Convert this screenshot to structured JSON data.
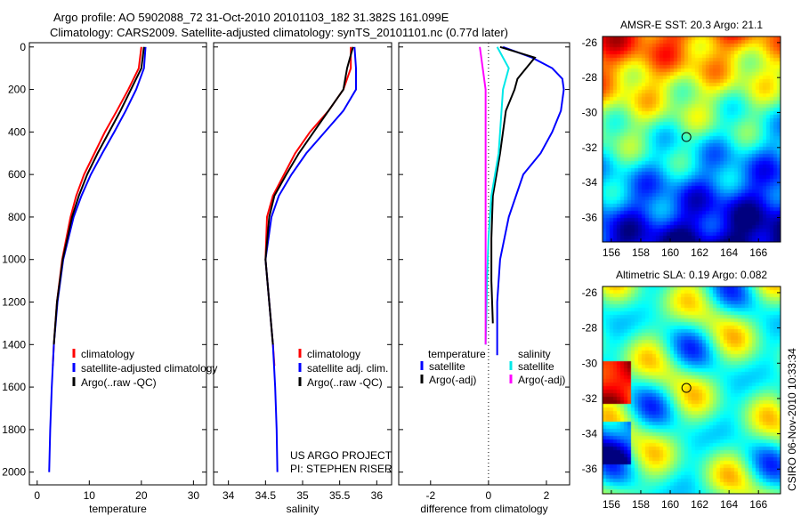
{
  "title_line1": "Argo profile: AO 5902088_72 31-Oct-2010 20101103_182 31.382S 161.099E",
  "title_line2": "Climatology: CARS2009. Satellite-adjusted climatology: synTS_20101101.nc (0.77d later)",
  "footer_credit": "CSIRO 06-Nov-2010 10:33:34",
  "project_line1": "US ARGO PROJECT",
  "project_line2": "PI: STEPHEN RISER",
  "colors": {
    "red": "#ff0000",
    "blue": "#0000ff",
    "black": "#000000",
    "cyan": "#00e8e8",
    "magenta": "#ff00ff"
  },
  "chart_data": [
    {
      "type": "line",
      "id": "temp",
      "xlabel": "temperature",
      "ylabel": "depth",
      "xlim": [
        -1.5,
        32.5
      ],
      "ylim": [
        2060,
        -20
      ],
      "xticks": [
        0,
        10,
        20,
        30
      ],
      "yticks": [
        0,
        200,
        400,
        600,
        800,
        1000,
        1200,
        1400,
        1600,
        1800,
        2000
      ],
      "legend": [
        "climatology",
        "satellite-adjusted climatology",
        "Argo(..raw -QC)"
      ],
      "series": [
        {
          "name": "climatology",
          "color": "red",
          "depth": [
            0,
            100,
            200,
            300,
            400,
            500,
            600,
            700,
            800,
            1000,
            1200,
            1400,
            1500
          ],
          "values": [
            20,
            19.5,
            17.5,
            15.3,
            13,
            11,
            9,
            7.5,
            6.4,
            4.8,
            3.8,
            3.2,
            3.0
          ]
        },
        {
          "name": "satellite-adjusted climatology",
          "color": "blue",
          "depth": [
            0,
            100,
            200,
            300,
            400,
            500,
            600,
            700,
            800,
            1000,
            1200,
            1400,
            1600,
            1800,
            2000
          ],
          "values": [
            20.8,
            20.5,
            19,
            17,
            14.8,
            12.5,
            10.3,
            8.5,
            7,
            5,
            3.9,
            3.2,
            2.8,
            2.5,
            2.3
          ]
        },
        {
          "name": "Argo(..raw -QC)",
          "color": "black",
          "depth": [
            0,
            100,
            200,
            300,
            400,
            500,
            600,
            700,
            800,
            1000,
            1200,
            1400
          ],
          "values": [
            20.5,
            20,
            18,
            16,
            13.8,
            11.6,
            9.6,
            8,
            6.7,
            4.9,
            3.8,
            3.2
          ]
        }
      ]
    },
    {
      "type": "line",
      "id": "sal",
      "xlabel": "salinity",
      "xlim": [
        33.8,
        36.2
      ],
      "ylim": [
        2060,
        -20
      ],
      "xticks": [
        34,
        34.5,
        35,
        35.5,
        36
      ],
      "yticks": [
        0,
        200,
        400,
        600,
        800,
        1000,
        1200,
        1400,
        1600,
        1800,
        2000
      ],
      "legend": [
        "climatology",
        "satellite adj. clim.",
        "Argo(..raw -QC)"
      ],
      "series": [
        {
          "name": "climatology",
          "color": "red",
          "depth": [
            0,
            100,
            200,
            300,
            400,
            500,
            600,
            700,
            800,
            1000,
            1200,
            1400,
            1500
          ],
          "values": [
            35.65,
            35.65,
            35.55,
            35.35,
            35.1,
            34.9,
            34.75,
            34.6,
            34.52,
            34.5,
            34.55,
            34.6,
            34.62
          ]
        },
        {
          "name": "satellite adj. clim.",
          "color": "blue",
          "depth": [
            0,
            100,
            200,
            300,
            400,
            500,
            600,
            700,
            800,
            1000,
            1200,
            1400,
            1600,
            1800,
            2000
          ],
          "values": [
            35.7,
            35.72,
            35.72,
            35.55,
            35.3,
            35.05,
            34.85,
            34.68,
            34.58,
            34.5,
            34.55,
            34.6,
            34.63,
            34.65,
            34.66
          ]
        },
        {
          "name": "Argo(..raw -QC)",
          "color": "black",
          "depth": [
            0,
            100,
            200,
            300,
            400,
            500,
            600,
            700,
            800,
            1000,
            1200,
            1400
          ],
          "values": [
            35.68,
            35.6,
            35.55,
            35.35,
            35.15,
            34.95,
            34.78,
            34.62,
            34.55,
            34.5,
            34.55,
            34.6
          ]
        }
      ]
    },
    {
      "type": "line",
      "id": "diff",
      "xlabel": "difference from climatology",
      "xlim": [
        -3.1,
        2.8
      ],
      "ylim": [
        2060,
        -20
      ],
      "xticks": [
        -2,
        0,
        2
      ],
      "yticks": [
        0,
        200,
        400,
        600,
        800,
        1000,
        1200,
        1400,
        1600,
        1800,
        2000
      ],
      "legend_headers": [
        "temperature",
        "salinity"
      ],
      "legend": [
        "satellite",
        "Argo(-adj)",
        "satellite",
        "Argo(-adj)"
      ],
      "series": [
        {
          "name": "temperature satellite",
          "color": "blue",
          "depth": [
            0,
            50,
            100,
            150,
            200,
            300,
            400,
            500,
            600,
            800,
            1000,
            1200,
            1450
          ],
          "values": [
            0.5,
            1.5,
            2.2,
            2.55,
            2.6,
            2.5,
            2.2,
            1.8,
            1.2,
            0.7,
            0.4,
            0.3,
            0.3
          ]
        },
        {
          "name": "temperature Argo(-adj)",
          "color": "black",
          "depth": [
            0,
            50,
            100,
            150,
            200,
            300,
            500,
            700,
            900,
            1100,
            1300
          ],
          "values": [
            0.4,
            1.6,
            1.3,
            1.0,
            0.9,
            0.6,
            0.4,
            0.15,
            0.1,
            0.1,
            0.15
          ]
        },
        {
          "name": "salinity satellite",
          "color": "cyan",
          "depth": [
            0,
            100,
            200,
            300,
            400,
            500,
            700,
            900,
            1100,
            1400
          ],
          "values": [
            0.3,
            0.7,
            0.5,
            0.45,
            0.4,
            0.35,
            0.1,
            0.0,
            -0.05,
            -0.1
          ]
        },
        {
          "name": "salinity Argo(-adj)",
          "color": "magenta",
          "depth": [
            0,
            100,
            200,
            400,
            600,
            800,
            1000,
            1200,
            1400
          ],
          "values": [
            -0.3,
            -0.2,
            -0.1,
            -0.1,
            -0.1,
            -0.1,
            -0.1,
            -0.1,
            -0.1
          ]
        }
      ]
    },
    {
      "type": "heatmap",
      "id": "sst",
      "title": "AMSR-E SST: 20.3 Argo: 21.1",
      "xlim": [
        155.4,
        167.5
      ],
      "ylim": [
        -37.4,
        -25.65
      ],
      "xticks": [
        156,
        158,
        160,
        162,
        164,
        166
      ],
      "yticks": [
        -26,
        -28,
        -30,
        -32,
        -34,
        -36
      ],
      "marker": [
        161.1,
        -31.4
      ]
    },
    {
      "type": "heatmap",
      "id": "sla",
      "title": "Altimetric SLA: 0.19 Argo: 0.082",
      "xlim": [
        155.4,
        167.5
      ],
      "ylim": [
        -37.4,
        -25.65
      ],
      "xticks": [
        156,
        158,
        160,
        162,
        164,
        166
      ],
      "yticks": [
        -26,
        -28,
        -30,
        -32,
        -34,
        -36
      ],
      "marker": [
        161.1,
        -31.4
      ]
    }
  ]
}
